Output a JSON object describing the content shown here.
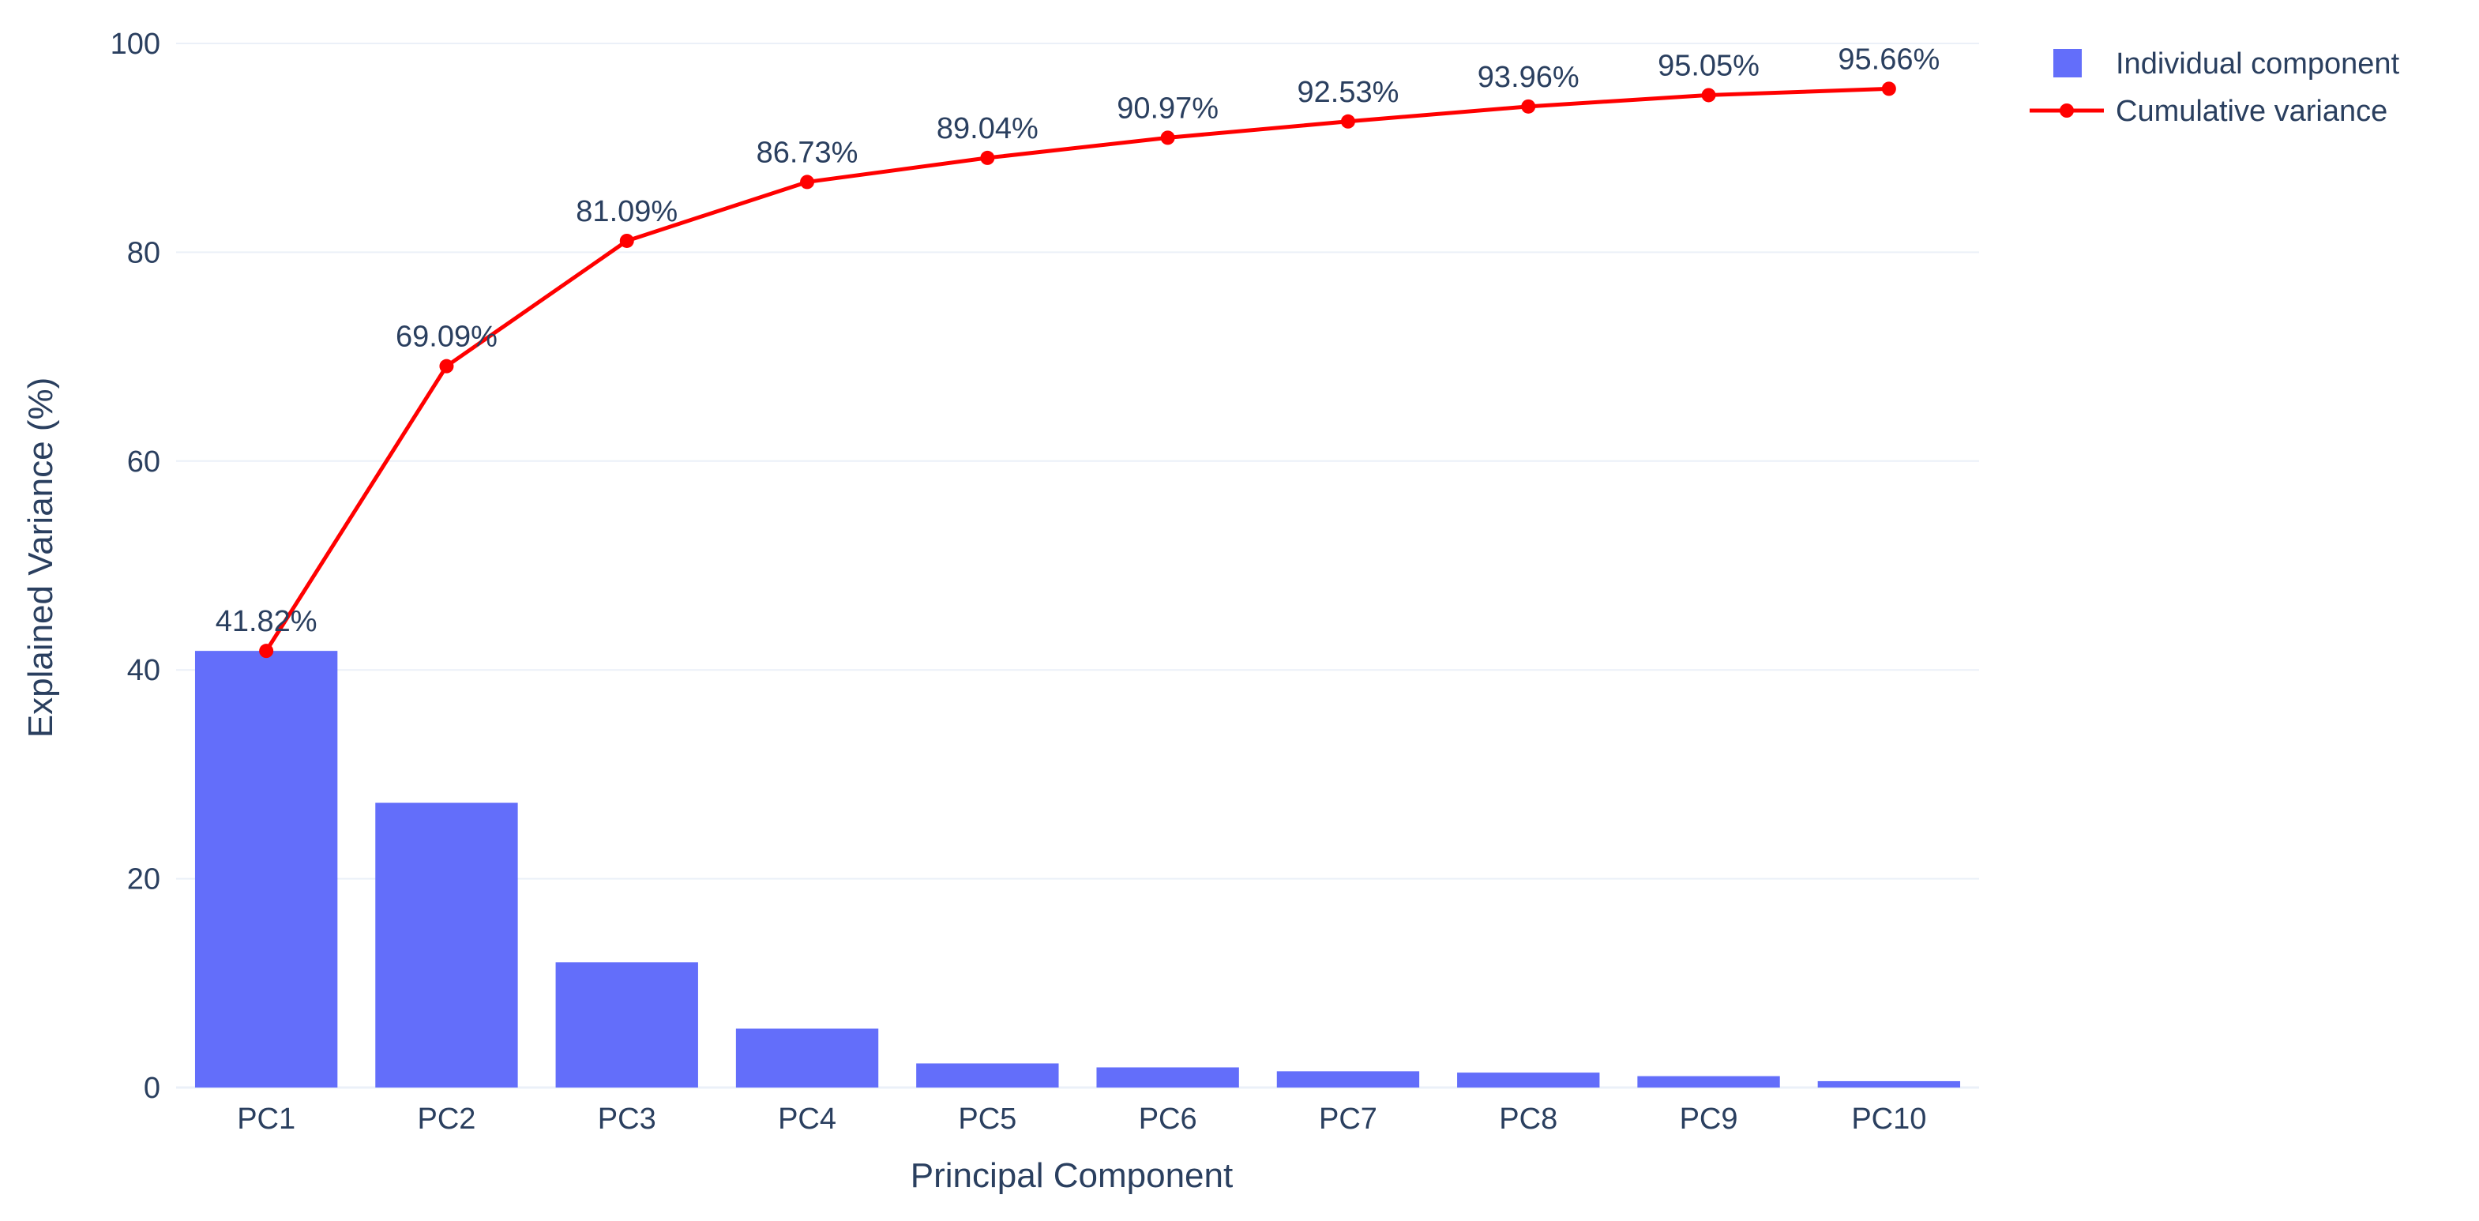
{
  "chart_data": {
    "type": "bar",
    "categories": [
      "PC1",
      "PC2",
      "PC3",
      "PC4",
      "PC5",
      "PC6",
      "PC7",
      "PC8",
      "PC9",
      "PC10"
    ],
    "series": [
      {
        "name": "Individual component",
        "type": "bar",
        "color": "#636efa",
        "values": [
          41.82,
          27.27,
          12.0,
          5.64,
          2.31,
          1.93,
          1.56,
          1.43,
          1.09,
          0.61
        ]
      },
      {
        "name": "Cumulative variance",
        "type": "line",
        "color": "#ff0000",
        "values": [
          41.82,
          69.09,
          81.09,
          86.73,
          89.04,
          90.97,
          92.53,
          93.96,
          95.05,
          95.66
        ],
        "labels": [
          "41.82%",
          "69.09%",
          "81.09%",
          "86.73%",
          "89.04%",
          "90.97%",
          "92.53%",
          "93.96%",
          "95.05%",
          "95.66%"
        ]
      }
    ],
    "xlabel": "Principal Component",
    "ylabel": "Explained Variance (%)",
    "ylim": [
      0,
      100
    ],
    "yticks": [
      0,
      20,
      40,
      60,
      80,
      100
    ],
    "grid": true,
    "legend_position": "top-right"
  }
}
